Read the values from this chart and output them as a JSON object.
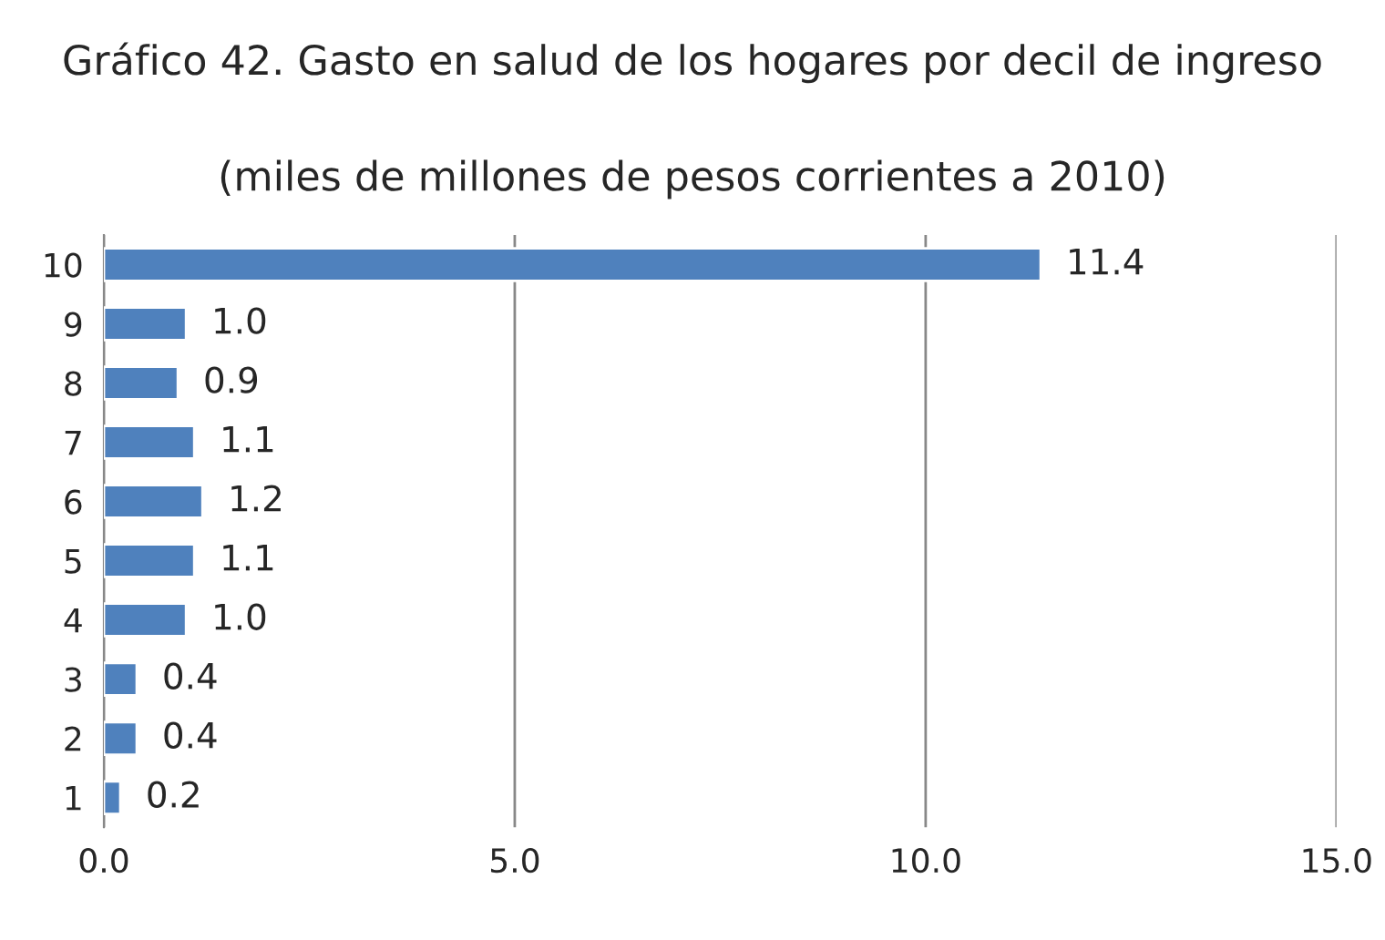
{
  "chart_data": {
    "type": "bar",
    "orientation": "horizontal",
    "title": "Gráfico 42. Gasto en salud de los hogares por decil de ingreso",
    "subtitle": "(miles de millones de pesos corrientes a 2010)",
    "categories": [
      "10",
      "9",
      "8",
      "7",
      "6",
      "5",
      "4",
      "3",
      "2",
      "1"
    ],
    "values": [
      11.4,
      1.0,
      0.9,
      1.1,
      1.2,
      1.1,
      1.0,
      0.4,
      0.4,
      0.2
    ],
    "value_labels": [
      "11.4",
      "1.0",
      "0.9",
      "1.1",
      "1.2",
      "1.1",
      "1.0",
      "0.4",
      "0.4",
      "0.2"
    ],
    "color": "#4f81bd",
    "xlim": [
      0,
      15
    ],
    "xticks": [
      {
        "value": 0,
        "label": "0.0"
      },
      {
        "value": 5,
        "label": "5.0"
      },
      {
        "value": 10,
        "label": "10.0"
      },
      {
        "value": 15,
        "label": "15.0"
      }
    ],
    "grid": "x",
    "legend": false
  }
}
